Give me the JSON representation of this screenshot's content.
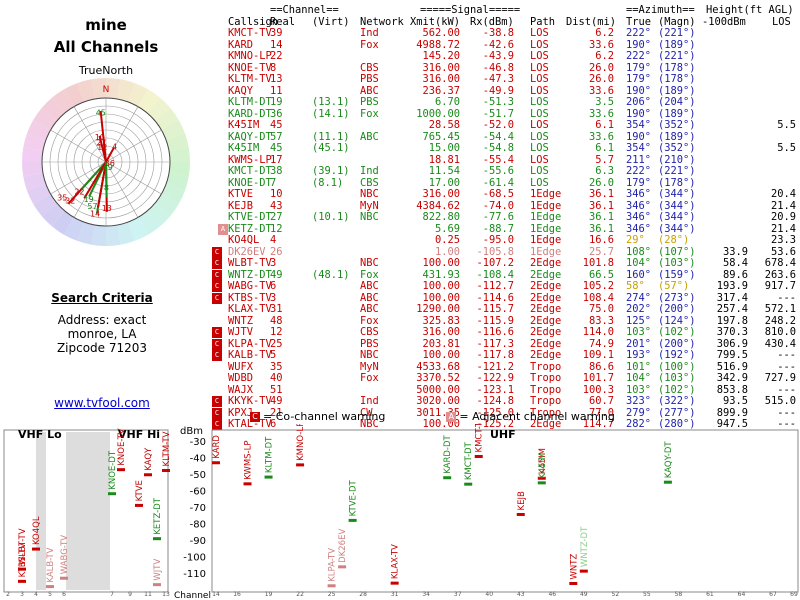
{
  "left": {
    "title": "mine",
    "subtitle": "All Channels",
    "radar_label": "TrueNorth",
    "radar_north_letter": "N",
    "search_title": "Search Criteria",
    "criteria": [
      "Address: exact",
      "monroe, LA",
      "Zipcode 71203"
    ],
    "link": "www.tvfool.com"
  },
  "table_headers": {
    "group_channel": "==Channel==",
    "group_signal": "=====Signal=====",
    "group_azimuth": "==Azimuth==",
    "group_height": "Height(ft AGL)",
    "callsign": "Callsign",
    "real": "Real",
    "virt": "(Virt)",
    "network": "Network",
    "xmit": "Xmit(kW)",
    "rx": "Rx(dBm)",
    "path": "Path",
    "dist": "Dist(mi)",
    "true": "True",
    "magn": "(Magn)",
    "hgt": "-100dBm",
    "los": "LOS"
  },
  "colors": {
    "red": "#c80000",
    "green": "#1a8a1a",
    "pink": "#d08080",
    "azimuth": "#22a",
    "warn_co": "#c80000",
    "warn_adj": "#e09090"
  },
  "stations": [
    {
      "cs": "KMCT-TV",
      "real": "39",
      "virt": "",
      "net": "Ind",
      "xmit": "562.00",
      "rx": "-38.8",
      "path": "LOS",
      "dist": "6.2",
      "t": "222°",
      "m": "(221°)",
      "h": "",
      "los": "",
      "color": "red",
      "warn": ""
    },
    {
      "cs": "KARD",
      "real": "14",
      "virt": "",
      "net": "Fox",
      "xmit": "4988.72",
      "rx": "-42.6",
      "path": "LOS",
      "dist": "33.6",
      "t": "190°",
      "m": "(189°)",
      "h": "",
      "los": "",
      "color": "red",
      "warn": ""
    },
    {
      "cs": "KMNO-LP",
      "real": "22",
      "virt": "",
      "net": "",
      "xmit": "145.20",
      "rx": "-43.9",
      "path": "LOS",
      "dist": "6.2",
      "t": "222°",
      "m": "(221°)",
      "h": "",
      "los": "",
      "color": "red",
      "warn": ""
    },
    {
      "cs": "KNOE-TV",
      "real": "8",
      "virt": "",
      "net": "CBS",
      "xmit": "316.00",
      "rx": "-46.8",
      "path": "LOS",
      "dist": "26.0",
      "t": "179°",
      "m": "(178°)",
      "h": "",
      "los": "",
      "color": "red",
      "warn": ""
    },
    {
      "cs": "KLTM-TV",
      "real": "13",
      "virt": "",
      "net": "PBS",
      "xmit": "316.00",
      "rx": "-47.3",
      "path": "LOS",
      "dist": "26.0",
      "t": "179°",
      "m": "(178°)",
      "h": "",
      "los": "",
      "color": "red",
      "warn": ""
    },
    {
      "cs": "KAQY",
      "real": "11",
      "virt": "",
      "net": "ABC",
      "xmit": "236.37",
      "rx": "-49.9",
      "path": "LOS",
      "dist": "33.6",
      "t": "190°",
      "m": "(189°)",
      "h": "",
      "los": "",
      "color": "red",
      "warn": ""
    },
    {
      "cs": "KLTM-DT",
      "real": "19",
      "virt": "(13.1)",
      "net": "PBS",
      "xmit": "6.70",
      "rx": "-51.3",
      "path": "LOS",
      "dist": "3.5",
      "t": "206°",
      "m": "(204°)",
      "h": "",
      "los": "",
      "color": "green",
      "warn": ""
    },
    {
      "cs": "KARD-DT",
      "real": "36",
      "virt": "(14.1)",
      "net": "Fox",
      "xmit": "1000.00",
      "rx": "-51.7",
      "path": "LOS",
      "dist": "33.6",
      "t": "190°",
      "m": "(189°)",
      "h": "",
      "los": "",
      "color": "green",
      "warn": ""
    },
    {
      "cs": "K45IM",
      "real": "45",
      "virt": "",
      "net": "",
      "xmit": "28.58",
      "rx": "-52.0",
      "path": "LOS",
      "dist": "6.1",
      "t": "354°",
      "m": "(352°)",
      "h": "",
      "los": "5.5",
      "color": "red",
      "warn": ""
    },
    {
      "cs": "KAQY-DT",
      "real": "57",
      "virt": "(11.1)",
      "net": "ABC",
      "xmit": "765.45",
      "rx": "-54.4",
      "path": "LOS",
      "dist": "33.6",
      "t": "190°",
      "m": "(189°)",
      "h": "",
      "los": "",
      "color": "green",
      "warn": ""
    },
    {
      "cs": "K45IM",
      "real": "45",
      "virt": "(45.1)",
      "net": "",
      "xmit": "15.00",
      "rx": "-54.8",
      "path": "LOS",
      "dist": "6.1",
      "t": "354°",
      "m": "(352°)",
      "h": "",
      "los": "5.5",
      "color": "green",
      "warn": ""
    },
    {
      "cs": "KWMS-LP",
      "real": "17",
      "virt": "",
      "net": "",
      "xmit": "18.81",
      "rx": "-55.4",
      "path": "LOS",
      "dist": "5.7",
      "t": "211°",
      "m": "(210°)",
      "h": "",
      "los": "",
      "color": "red",
      "warn": ""
    },
    {
      "cs": "KMCT-DT",
      "real": "38",
      "virt": "(39.1)",
      "net": "Ind",
      "xmit": "11.54",
      "rx": "-55.6",
      "path": "LOS",
      "dist": "6.3",
      "t": "222°",
      "m": "(221°)",
      "h": "",
      "los": "",
      "color": "green",
      "warn": ""
    },
    {
      "cs": "KNOE-DT",
      "real": "7",
      "virt": "(8.1)",
      "net": "CBS",
      "xmit": "17.00",
      "rx": "-61.4",
      "path": "LOS",
      "dist": "26.0",
      "t": "179°",
      "m": "(178°)",
      "h": "",
      "los": "",
      "color": "green",
      "warn": ""
    },
    {
      "cs": "KTVE",
      "real": "10",
      "virt": "",
      "net": "NBC",
      "xmit": "316.00",
      "rx": "-68.5",
      "path": "1Edge",
      "dist": "36.1",
      "t": "346°",
      "m": "(344°)",
      "h": "",
      "los": "20.4",
      "color": "red",
      "warn": ""
    },
    {
      "cs": "KEJB",
      "real": "43",
      "virt": "",
      "net": "MyN",
      "xmit": "4384.62",
      "rx": "-74.0",
      "path": "1Edge",
      "dist": "36.1",
      "t": "346°",
      "m": "(344°)",
      "h": "",
      "los": "21.4",
      "color": "red",
      "warn": ""
    },
    {
      "cs": "KTVE-DT",
      "real": "27",
      "virt": "(10.1)",
      "net": "NBC",
      "xmit": "822.80",
      "rx": "-77.6",
      "path": "1Edge",
      "dist": "36.1",
      "t": "346°",
      "m": "(344°)",
      "h": "",
      "los": "20.9",
      "color": "green",
      "warn": ""
    },
    {
      "cs": "KETZ-DT",
      "real": "12",
      "virt": "",
      "net": "",
      "xmit": "5.69",
      "rx": "-88.7",
      "path": "1Edge",
      "dist": "36.1",
      "t": "346°",
      "m": "(344°)",
      "h": "",
      "los": "21.4",
      "color": "green",
      "warn": "adj"
    },
    {
      "cs": "KO4QL",
      "real": "4",
      "virt": "",
      "net": "",
      "xmit": "0.25",
      "rx": "-95.0",
      "path": "1Edge",
      "dist": "16.6",
      "t": "29°",
      "m": "(28°)",
      "h": "",
      "los": "23.3",
      "color": "red",
      "warn": "",
      "tcolor": "yellow"
    },
    {
      "cs": "DK26EV",
      "real": "26",
      "virt": "",
      "net": "",
      "xmit": "1.00",
      "rx": "-105.8",
      "path": "1Edge",
      "dist": "25.7",
      "t": "108°",
      "m": "(107°)",
      "h": "33.9",
      "los": "53.6",
      "color": "pink",
      "warn": "co",
      "tcolor": "green"
    },
    {
      "cs": "WLBT-TV",
      "real": "3",
      "virt": "",
      "net": "NBC",
      "xmit": "100.00",
      "rx": "-107.2",
      "path": "2Edge",
      "dist": "101.8",
      "t": "104°",
      "m": "(103°)",
      "h": "58.4",
      "los": "678.4",
      "color": "red",
      "warn": "co",
      "tcolor": "green"
    },
    {
      "cs": "WNTZ-DT",
      "real": "49",
      "virt": "(48.1)",
      "net": "Fox",
      "xmit": "431.93",
      "rx": "-108.4",
      "path": "2Edge",
      "dist": "66.5",
      "t": "160°",
      "m": "(159°)",
      "h": "89.6",
      "los": "263.6",
      "color": "green",
      "warn": "co"
    },
    {
      "cs": "WABG-TV",
      "real": "6",
      "virt": "",
      "net": "ABC",
      "xmit": "100.00",
      "rx": "-112.7",
      "path": "2Edge",
      "dist": "105.2",
      "t": "58°",
      "m": "(57°)",
      "h": "193.9",
      "los": "917.7",
      "color": "red",
      "warn": "co",
      "tcolor": "yellow"
    },
    {
      "cs": "KTBS-TV",
      "real": "3",
      "virt": "",
      "net": "ABC",
      "xmit": "100.00",
      "rx": "-114.6",
      "path": "2Edge",
      "dist": "108.4",
      "t": "274°",
      "m": "(273°)",
      "h": "317.4",
      "los": "---",
      "color": "red",
      "warn": "co"
    },
    {
      "cs": "KLAX-TV",
      "real": "31",
      "virt": "",
      "net": "ABC",
      "xmit": "1290.00",
      "rx": "-115.7",
      "path": "2Edge",
      "dist": "75.0",
      "t": "202°",
      "m": "(200°)",
      "h": "257.4",
      "los": "572.1",
      "color": "red",
      "warn": ""
    },
    {
      "cs": "WNTZ",
      "real": "48",
      "virt": "",
      "net": "Fox",
      "xmit": "325.83",
      "rx": "-115.9",
      "path": "2Edge",
      "dist": "83.3",
      "t": "125°",
      "m": "(124°)",
      "h": "197.8",
      "los": "248.2",
      "color": "red",
      "warn": ""
    },
    {
      "cs": "WJTV",
      "real": "12",
      "virt": "",
      "net": "CBS",
      "xmit": "316.00",
      "rx": "-116.6",
      "path": "2Edge",
      "dist": "114.0",
      "t": "103°",
      "m": "(102°)",
      "h": "370.3",
      "los": "810.0",
      "color": "red",
      "warn": "co",
      "tcolor": "green"
    },
    {
      "cs": "KLPA-TV",
      "real": "25",
      "virt": "",
      "net": "PBS",
      "xmit": "203.81",
      "rx": "-117.3",
      "path": "2Edge",
      "dist": "74.9",
      "t": "201°",
      "m": "(200°)",
      "h": "306.9",
      "los": "430.4",
      "color": "red",
      "warn": "co"
    },
    {
      "cs": "KALB-TV",
      "real": "5",
      "virt": "",
      "net": "NBC",
      "xmit": "100.00",
      "rx": "-117.8",
      "path": "2Edge",
      "dist": "109.1",
      "t": "193°",
      "m": "(192°)",
      "h": "799.5",
      "los": "---",
      "color": "red",
      "warn": "co"
    },
    {
      "cs": "WUFX",
      "real": "35",
      "virt": "",
      "net": "MyN",
      "xmit": "4533.68",
      "rx": "-121.2",
      "path": "Tropo",
      "dist": "86.6",
      "t": "101°",
      "m": "(100°)",
      "h": "516.9",
      "los": "---",
      "color": "red",
      "warn": "",
      "tcolor": "green"
    },
    {
      "cs": "WDBD",
      "real": "40",
      "virt": "",
      "net": "Fox",
      "xmit": "3370.52",
      "rx": "-122.9",
      "path": "Tropo",
      "dist": "101.7",
      "t": "104°",
      "m": "(103°)",
      "h": "342.9",
      "los": "727.9",
      "color": "red",
      "warn": "",
      "tcolor": "green"
    },
    {
      "cs": "WAJX",
      "real": "51",
      "virt": "",
      "net": "",
      "xmit": "5000.00",
      "rx": "-123.1",
      "path": "Tropo",
      "dist": "100.3",
      "t": "103°",
      "m": "(102°)",
      "h": "853.8",
      "los": "---",
      "color": "red",
      "warn": "",
      "tcolor": "green"
    },
    {
      "cs": "KKYK-TV",
      "real": "49",
      "virt": "",
      "net": "Ind",
      "xmit": "3020.00",
      "rx": "-124.8",
      "path": "Tropo",
      "dist": "60.7",
      "t": "323°",
      "m": "(322°)",
      "h": "93.5",
      "los": "515.0",
      "color": "red",
      "warn": "co"
    },
    {
      "cs": "KPXJ",
      "real": "21",
      "virt": "",
      "net": "CW",
      "xmit": "3011.35",
      "rx": "-125.0",
      "path": "Tropo",
      "dist": "77.0",
      "t": "279°",
      "m": "(277°)",
      "h": "899.9",
      "los": "---",
      "color": "red",
      "warn": "co"
    },
    {
      "cs": "KTAL-TV",
      "real": "6",
      "virt": "",
      "net": "NBC",
      "xmit": "100.00",
      "rx": "-125.2",
      "path": "2Edge",
      "dist": "114.7",
      "t": "282°",
      "m": "(280°)",
      "h": "947.5",
      "los": "---",
      "color": "red",
      "warn": "co"
    }
  ],
  "legend": {
    "co_label": "= Co-channel warning",
    "adj_label": "= Adjacent channel warning",
    "co_glyph": "C",
    "adj_glyph": "A"
  },
  "spectrum": {
    "vhf_lo": "VHF Lo",
    "vhf_hi": "VHF Hi",
    "uhf": "UHF",
    "dbm_label": "dBm",
    "channel_label": "Channel",
    "y_ticks": [
      -30,
      -40,
      -50,
      -60,
      -70,
      -80,
      -90,
      -100,
      -110
    ],
    "vhf_lo_ticks": [
      "2",
      "3",
      "4",
      "5",
      "6"
    ],
    "vhf_hi_ticks": [
      "7",
      "9",
      "11",
      "13"
    ],
    "uhf_ticks": [
      "14",
      "16",
      "19",
      "22",
      "25",
      "28",
      "31",
      "34",
      "37",
      "40",
      "43",
      "46",
      "49",
      "52",
      "55",
      "58",
      "61",
      "64",
      "67",
      "69"
    ],
    "markers": [
      {
        "label": "KTBS-TV",
        "band": "lo",
        "ch": 3,
        "rx": -114.6,
        "color": "red"
      },
      {
        "label": "WLBT-TV",
        "band": "lo",
        "ch": 3,
        "rx": -107.2,
        "color": "red"
      },
      {
        "label": "KO4QL",
        "band": "lo",
        "ch": 4,
        "rx": -95.0,
        "color": "red"
      },
      {
        "label": "KALB-TV",
        "band": "lo",
        "ch": 5,
        "rx": -117.8,
        "color": "pink"
      },
      {
        "label": "WABG-TV",
        "band": "lo",
        "ch": 6,
        "rx": -112.7,
        "color": "pink"
      },
      {
        "label": "KNOE-DT",
        "band": "hi",
        "ch": 7,
        "rx": -61.4,
        "color": "green"
      },
      {
        "label": "KNOE-TV",
        "band": "hi",
        "ch": 8,
        "rx": -46.8,
        "color": "red"
      },
      {
        "label": "KTVE",
        "band": "hi",
        "ch": 10,
        "rx": -68.5,
        "color": "red"
      },
      {
        "label": "KAQY",
        "band": "hi",
        "ch": 11,
        "rx": -49.9,
        "color": "red"
      },
      {
        "label": "KETZ-DT",
        "band": "hi",
        "ch": 12,
        "rx": -88.7,
        "color": "green"
      },
      {
        "label": "WJTV",
        "band": "hi",
        "ch": 12,
        "rx": -116.6,
        "color": "pink"
      },
      {
        "label": "KLTM-TV",
        "band": "hi",
        "ch": 13,
        "rx": -47.3,
        "color": "red"
      },
      {
        "label": "KARD",
        "band": "uhf",
        "ch": 14,
        "rx": -42.6,
        "color": "red"
      },
      {
        "label": "KWMS-LP",
        "band": "uhf",
        "ch": 17,
        "rx": -55.4,
        "color": "red"
      },
      {
        "label": "KLTM-DT",
        "band": "uhf",
        "ch": 19,
        "rx": -51.3,
        "color": "green"
      },
      {
        "label": "KMNO-LP",
        "band": "uhf",
        "ch": 22,
        "rx": -43.9,
        "color": "red"
      },
      {
        "label": "KLPA-TV",
        "band": "uhf",
        "ch": 25,
        "rx": -117.3,
        "color": "pink"
      },
      {
        "label": "DK26EV",
        "band": "uhf",
        "ch": 26,
        "rx": -105.8,
        "color": "pink"
      },
      {
        "label": "KTVE-DT",
        "band": "uhf",
        "ch": 27,
        "rx": -77.6,
        "color": "green"
      },
      {
        "label": "KLAX-TV",
        "band": "uhf",
        "ch": 31,
        "rx": -115.7,
        "color": "red"
      },
      {
        "label": "KARD-DT",
        "band": "uhf",
        "ch": 36,
        "rx": -51.7,
        "color": "green"
      },
      {
        "label": "KMCT-DT",
        "band": "uhf",
        "ch": 38,
        "rx": -55.6,
        "color": "green"
      },
      {
        "label": "KMCT-TV",
        "band": "uhf",
        "ch": 39,
        "rx": -38.8,
        "color": "red"
      },
      {
        "label": "KEJB",
        "band": "uhf",
        "ch": 43,
        "rx": -74.0,
        "color": "red"
      },
      {
        "label": "K45IM",
        "band": "uhf",
        "ch": 45,
        "rx": -52.0,
        "color": "red"
      },
      {
        "label": "K45IM",
        "band": "uhf",
        "ch": 45,
        "rx": -54.8,
        "color": "green"
      },
      {
        "label": "WNTZ",
        "band": "uhf",
        "ch": 48,
        "rx": -115.9,
        "color": "red"
      },
      {
        "label": "WNTZ-DT",
        "band": "uhf",
        "ch": 49,
        "rx": -108.4,
        "color": "pink-green"
      },
      {
        "label": "KAQY-DT",
        "band": "uhf",
        "ch": 57,
        "rx": -54.4,
        "color": "green"
      }
    ]
  },
  "radar": {
    "rings": 8,
    "labels": [
      {
        "text": "45",
        "az": 354,
        "r": 0.78,
        "color": "green"
      },
      {
        "text": "10",
        "az": 346,
        "r": 0.4,
        "color": "red"
      },
      {
        "text": "27",
        "az": 346,
        "r": 0.31,
        "color": "red"
      },
      {
        "text": "12",
        "az": 346,
        "r": 0.24,
        "color": "red"
      },
      {
        "text": "4",
        "az": 29,
        "r": 0.28,
        "color": "red"
      },
      {
        "text": "36",
        "az": 104,
        "r": 0.06,
        "color": "red"
      },
      {
        "text": "49",
        "az": 160,
        "r": 0.08,
        "color": "green"
      },
      {
        "text": "8",
        "az": 179,
        "r": 0.4,
        "color": "green"
      },
      {
        "text": "13",
        "az": 179,
        "r": 0.72,
        "color": "red"
      },
      {
        "text": "14",
        "az": 192,
        "r": 0.82,
        "color": "red"
      },
      {
        "text": "19",
        "az": 205,
        "r": 0.64,
        "color": "green"
      },
      {
        "text": "22",
        "az": 222,
        "r": 0.62,
        "color": "red"
      },
      {
        "text": "32",
        "az": 223,
        "r": 0.82,
        "color": "red"
      },
      {
        "text": "35",
        "az": 231,
        "r": 0.88,
        "color": "red"
      },
      {
        "text": "57",
        "az": 197,
        "r": 0.72,
        "color": "green"
      }
    ],
    "spokes": [
      {
        "az": 354,
        "len": 0.8,
        "color": "red"
      },
      {
        "az": 346,
        "len": 0.42,
        "color": "red"
      },
      {
        "az": 29,
        "len": 0.26,
        "color": "red"
      },
      {
        "az": 179,
        "len": 0.78,
        "color": "red"
      },
      {
        "az": 190,
        "len": 0.82,
        "color": "green"
      },
      {
        "az": 190,
        "len": 0.72,
        "color": "red"
      },
      {
        "az": 206,
        "len": 0.6,
        "color": "green"
      },
      {
        "az": 222,
        "len": 0.88,
        "color": "red"
      },
      {
        "az": 222,
        "len": 0.58,
        "color": "green"
      },
      {
        "az": 211,
        "len": 0.66,
        "color": "red"
      },
      {
        "az": 179,
        "len": 0.55,
        "color": "green"
      }
    ]
  }
}
